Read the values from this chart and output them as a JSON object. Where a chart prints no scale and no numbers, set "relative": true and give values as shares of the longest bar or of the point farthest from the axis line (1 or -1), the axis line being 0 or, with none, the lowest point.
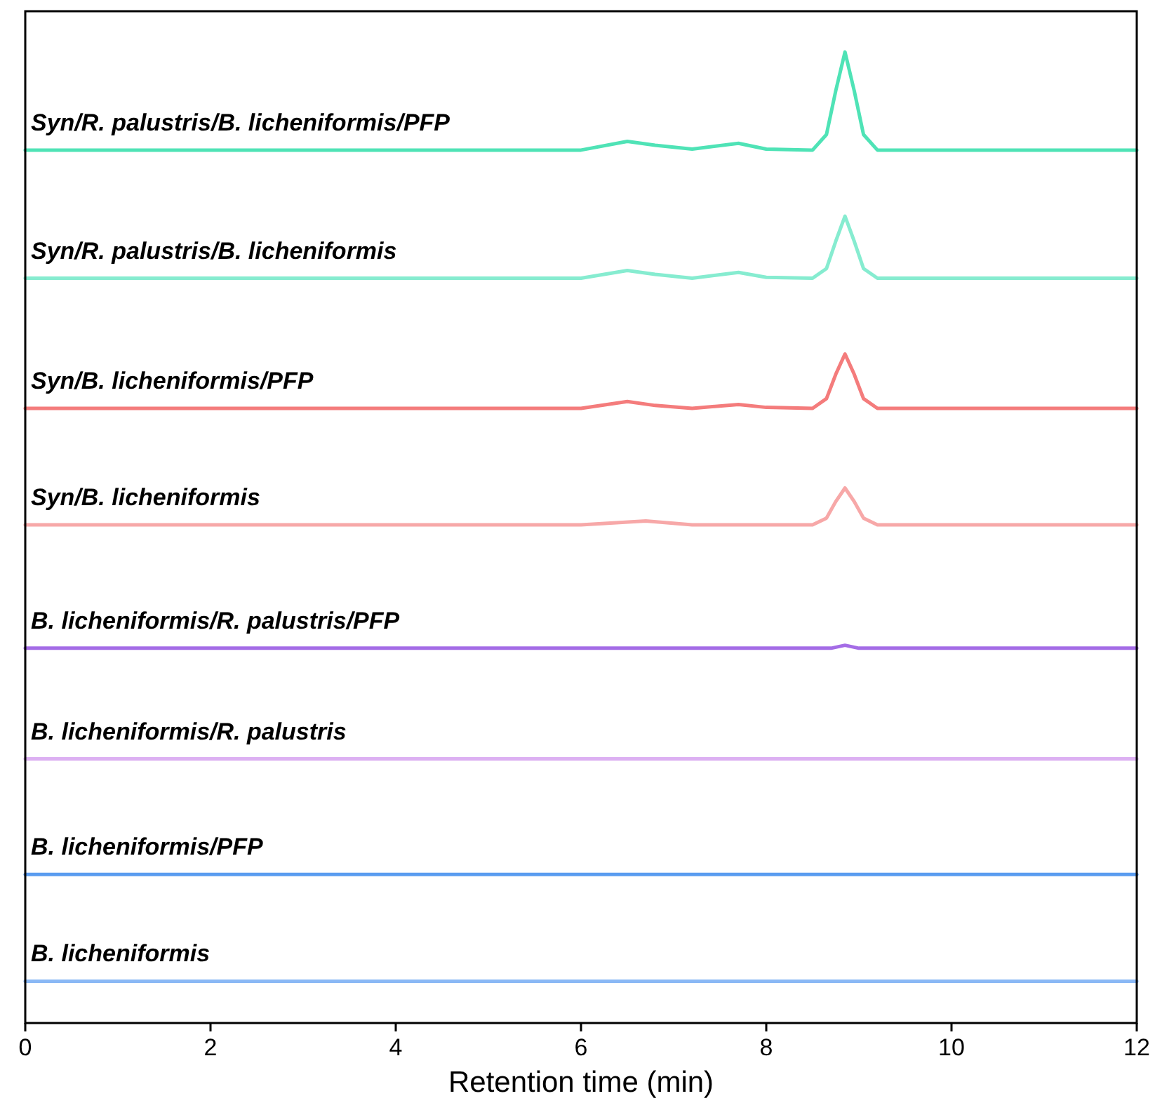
{
  "chart_data": {
    "type": "line",
    "relative": true,
    "xlabel": "Retention time (min)",
    "xlim": [
      0,
      12
    ],
    "xticks": [
      0,
      2,
      4,
      6,
      8,
      10,
      12
    ],
    "legend": false,
    "series": [
      {
        "name": "Syn/R. palustris/B. licheniformis/PFP",
        "color": "#4fe3b6",
        "x": [
          0,
          3,
          6,
          6.5,
          6.8,
          7.2,
          7.7,
          8,
          8.5,
          8.65,
          8.75,
          8.85,
          8.95,
          9.05,
          9.2,
          12
        ],
        "values": [
          0.899,
          0.899,
          0.899,
          0.908,
          0.904,
          0.9,
          0.906,
          0.9,
          0.899,
          0.915,
          0.96,
          1,
          0.96,
          0.915,
          0.899,
          0.899
        ]
      },
      {
        "name": "Syn/R. palustris/B. licheniformis",
        "color": "#86ecd0",
        "x": [
          0,
          3,
          6,
          6.5,
          6.8,
          7.2,
          7.7,
          8,
          8.5,
          8.65,
          8.75,
          8.85,
          8.95,
          9.05,
          9.2,
          12
        ],
        "values": [
          0.767,
          0.767,
          0.767,
          0.775,
          0.771,
          0.767,
          0.773,
          0.768,
          0.767,
          0.777,
          0.805,
          0.831,
          0.805,
          0.777,
          0.767,
          0.767
        ]
      },
      {
        "name": "Syn/B. licheniformis/PFP",
        "color": "#f47c7c",
        "x": [
          0,
          3,
          6,
          6.5,
          6.8,
          7.2,
          7.7,
          8,
          8.5,
          8.65,
          8.75,
          8.85,
          8.95,
          9.05,
          9.2,
          12
        ],
        "values": [
          0.633,
          0.633,
          0.633,
          0.64,
          0.636,
          0.633,
          0.637,
          0.634,
          0.633,
          0.643,
          0.668,
          0.689,
          0.668,
          0.643,
          0.633,
          0.633
        ]
      },
      {
        "name": "Syn/B. licheniformis",
        "color": "#f7a8a8",
        "x": [
          0,
          3,
          6,
          6.7,
          7.2,
          8.5,
          8.65,
          8.75,
          8.85,
          8.95,
          9.05,
          9.2,
          12
        ],
        "values": [
          0.513,
          0.513,
          0.513,
          0.517,
          0.513,
          0.513,
          0.52,
          0.537,
          0.551,
          0.537,
          0.52,
          0.513,
          0.513
        ]
      },
      {
        "name": "B. licheniformis/R. palustris/PFP",
        "color": "#a46ce6",
        "x": [
          0,
          6,
          8.7,
          8.85,
          9,
          12
        ],
        "values": [
          0.386,
          0.386,
          0.386,
          0.389,
          0.386,
          0.386
        ]
      },
      {
        "name": "B. licheniformis/R. palustris",
        "color": "#dcb0f2",
        "x": [
          0,
          12
        ],
        "values": [
          0.272,
          0.272
        ]
      },
      {
        "name": "B. licheniformis/PFP",
        "color": "#5a9cf0",
        "x": [
          0,
          12
        ],
        "values": [
          0.153,
          0.153
        ]
      },
      {
        "name": "B. licheniformis",
        "color": "#8ab8f5",
        "x": [
          0,
          12
        ],
        "values": [
          0.043,
          0.043
        ]
      }
    ]
  }
}
